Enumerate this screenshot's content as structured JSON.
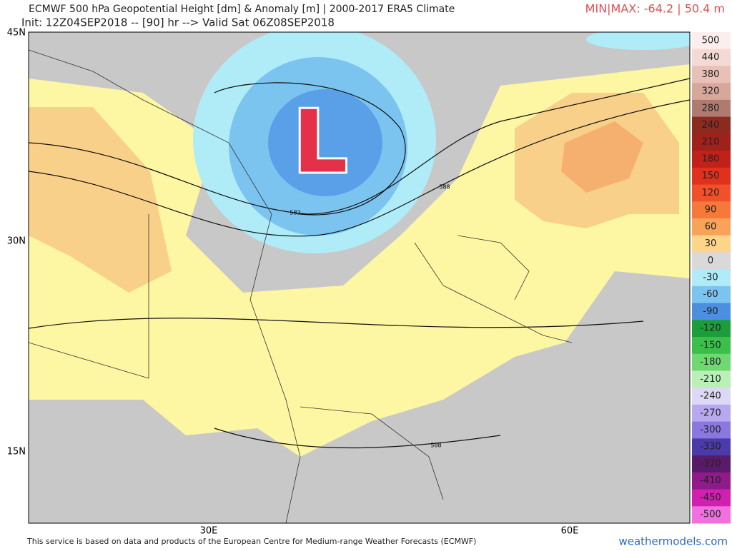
{
  "header": {
    "title": "ECMWF 500 hPa Geopotential Height [dm] & Anomaly [m] | 2000-2017 ERA5 Climate",
    "init": "Init: 12Z04SEP2018 -- [90] hr --> Valid Sat 06Z08SEP2018",
    "minmax": "MIN|MAX: -64.2 | 50.4 m"
  },
  "map": {
    "lat_labels": [
      "45N",
      "30N",
      "15N"
    ],
    "lon_labels": [
      "30E",
      "60E"
    ],
    "contour_labels": [
      "588",
      "582",
      "588"
    ],
    "low_marker": "L"
  },
  "colorbar": {
    "labels": [
      "500",
      "440",
      "380",
      "320",
      "280",
      "240",
      "210",
      "180",
      "150",
      "120",
      "90",
      "60",
      "30",
      "0",
      "-30",
      "-60",
      "-90",
      "-120",
      "-150",
      "-180",
      "-210",
      "-240",
      "-270",
      "-300",
      "-330",
      "-370",
      "-410",
      "-450",
      "-500"
    ],
    "colors": [
      "#fdeeee",
      "#f5d9d4",
      "#e8c0b8",
      "#d8a79c",
      "#b07a70",
      "#8b2a1f",
      "#a0201a",
      "#c0221a",
      "#e0301e",
      "#f0502a",
      "#f57a3a",
      "#f9a35a",
      "#fdd58a",
      "#d9d9d9",
      "#b0ecf8",
      "#7cc4f0",
      "#4a8fe0",
      "#1b9e3a",
      "#3cbf4a",
      "#70d870",
      "#b8f0b8",
      "#ddd8f5",
      "#b8a8ee",
      "#8a78e0",
      "#4a3aaa",
      "#5a1a6a",
      "#901a8a",
      "#d020b0",
      "#f070e0"
    ]
  },
  "footer": {
    "credit": "This service is based on data and products of the European Centre for Medium-range Weather Forecasts (ECMWF)",
    "site": "weathermodels.com"
  }
}
